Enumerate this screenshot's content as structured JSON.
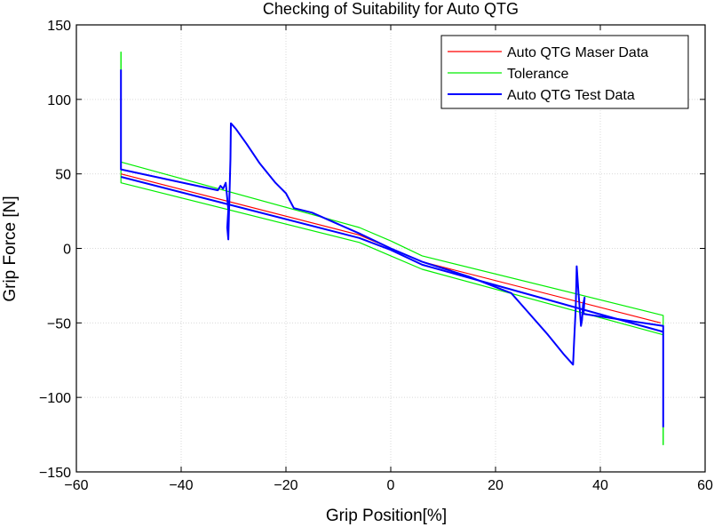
{
  "chart_data": {
    "type": "line",
    "title": "Checking of Suitability for Auto QTG",
    "xlabel": "Grip Position[%]",
    "ylabel": "Grip Force [N]",
    "xlim": [
      -60,
      60
    ],
    "ylim": [
      -150,
      150
    ],
    "x_ticks": [
      -60,
      -40,
      -20,
      0,
      20,
      40,
      60
    ],
    "y_ticks": [
      -150,
      -100,
      -50,
      0,
      50,
      100,
      150
    ],
    "x_tick_labels": [
      "−60",
      "−40",
      "−20",
      "0",
      "20",
      "40",
      "60"
    ],
    "y_tick_labels": [
      "−150",
      "−100",
      "−50",
      "0",
      "50",
      "100",
      "150"
    ],
    "grid": true,
    "legend_position": "top-right",
    "series": [
      {
        "name": "Auto QTG Maser Data",
        "color": "#ff0000",
        "segments": [
          [
            [
              -51.5,
              50
            ],
            [
              -6,
              9
            ],
            [
              0,
              0
            ],
            [
              6,
              -9
            ],
            [
              51.5,
              -50
            ]
          ]
        ]
      },
      {
        "name": "Tolerance",
        "color": "#00ee00",
        "segments": [
          [
            [
              -51.5,
              132
            ],
            [
              -51.5,
              58
            ],
            [
              -6,
              14
            ],
            [
              0,
              5
            ],
            [
              6,
              -5
            ],
            [
              52,
              -45
            ],
            [
              52,
              -132
            ]
          ],
          [
            [
              -51.5,
              132
            ],
            [
              -51.5,
              44
            ],
            [
              -6,
              4
            ],
            [
              0,
              -5
            ],
            [
              6,
              -14
            ],
            [
              52,
              -58
            ],
            [
              52,
              -132
            ]
          ]
        ]
      },
      {
        "name": "Auto QTG Test Data",
        "color": "#0000ff",
        "segments": [
          [
            [
              -51.5,
              120
            ],
            [
              -51.5,
              53
            ],
            [
              -33,
              39
            ],
            [
              -32.5,
              42
            ],
            [
              -32,
              40
            ],
            [
              -31.5,
              44
            ],
            [
              -31,
              26
            ],
            [
              -31.2,
              14
            ],
            [
              -31,
              6
            ],
            [
              -30.9,
              20
            ],
            [
              -30.6,
              60
            ],
            [
              -30.5,
              84
            ],
            [
              -29.5,
              80
            ],
            [
              -27.5,
              70
            ],
            [
              -25,
              57
            ],
            [
              -22,
              44
            ],
            [
              -20,
              37
            ],
            [
              -18.5,
              27
            ],
            [
              -15,
              24
            ],
            [
              -6,
              10
            ],
            [
              0,
              0
            ],
            [
              6,
              -9
            ],
            [
              15,
              -19
            ],
            [
              21.5,
              -28
            ],
            [
              23,
              -30
            ],
            [
              26,
              -42
            ],
            [
              30,
              -58
            ],
            [
              33,
              -71
            ],
            [
              34.8,
              -78
            ],
            [
              35,
              -62
            ],
            [
              35.3,
              -40
            ],
            [
              35.4,
              -25
            ],
            [
              35.5,
              -12
            ],
            [
              35.8,
              -28
            ],
            [
              36.1,
              -42
            ],
            [
              36.3,
              -52
            ],
            [
              36.5,
              -48
            ],
            [
              36.7,
              -38
            ],
            [
              37,
              -33
            ],
            [
              36.8,
              -44
            ],
            [
              52,
              -52
            ],
            [
              52,
              -120
            ]
          ],
          [
            [
              -51.5,
              48
            ],
            [
              -6,
              7
            ],
            [
              0,
              -1
            ],
            [
              6,
              -11
            ],
            [
              52,
              -56
            ]
          ]
        ]
      }
    ]
  }
}
